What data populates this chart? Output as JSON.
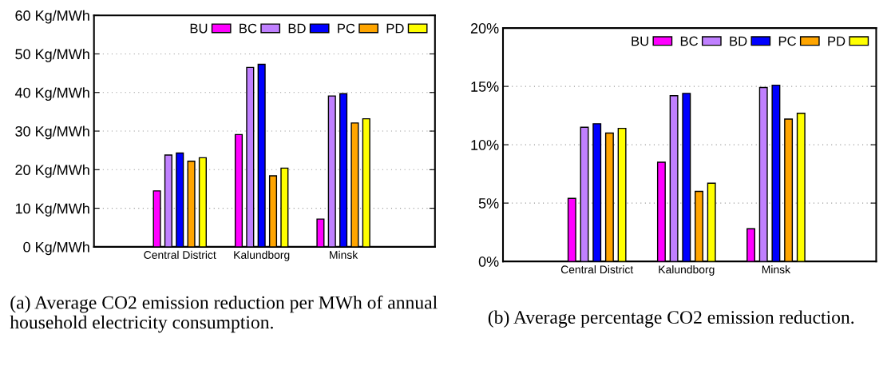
{
  "chart_data": [
    {
      "type": "bar",
      "title": "(a) Average CO2 emission reduction per MWh of annual household electricity consumption.",
      "categories": [
        "Central District",
        "Kalundborg",
        "Minsk"
      ],
      "series": [
        {
          "name": "BU",
          "color": "#ff00ff",
          "values": [
            14.5,
            29.1,
            7.2
          ]
        },
        {
          "name": "BC",
          "color": "#c080ff",
          "values": [
            23.8,
            46.5,
            39.1
          ]
        },
        {
          "name": "BD",
          "color": "#0000ff",
          "values": [
            24.3,
            47.3,
            39.7
          ]
        },
        {
          "name": "PC",
          "color": "#ffa500",
          "values": [
            22.2,
            18.4,
            32.1
          ]
        },
        {
          "name": "PD",
          "color": "#ffff00",
          "values": [
            23.1,
            20.4,
            33.2
          ]
        }
      ],
      "ylim": [
        0,
        60
      ],
      "yticks": [
        {
          "value": 0,
          "label": "0 Kg/MWh"
        },
        {
          "value": 10,
          "label": "10 Kg/MWh"
        },
        {
          "value": 20,
          "label": "20 Kg/MWh"
        },
        {
          "value": 30,
          "label": "30 Kg/MWh"
        },
        {
          "value": 40,
          "label": "40 Kg/MWh"
        },
        {
          "value": 50,
          "label": "50 Kg/MWh"
        },
        {
          "value": 60,
          "label": "60 Kg/MWh"
        }
      ],
      "grid": "y",
      "legend": "top right"
    },
    {
      "type": "bar",
      "title": "(b) Average percentage CO2 emission reduction.",
      "categories": [
        "Central District",
        "Kalundborg",
        "Minsk"
      ],
      "series": [
        {
          "name": "BU",
          "color": "#ff00ff",
          "values": [
            5.4,
            8.5,
            2.8
          ]
        },
        {
          "name": "BC",
          "color": "#c080ff",
          "values": [
            11.5,
            14.2,
            14.9
          ]
        },
        {
          "name": "BD",
          "color": "#0000ff",
          "values": [
            11.8,
            14.4,
            15.1
          ]
        },
        {
          "name": "PC",
          "color": "#ffa500",
          "values": [
            11.0,
            6.0,
            12.2
          ]
        },
        {
          "name": "PD",
          "color": "#ffff00",
          "values": [
            11.4,
            6.7,
            12.7
          ]
        }
      ],
      "ylim": [
        0,
        20
      ],
      "yticks": [
        {
          "value": 0,
          "label": "0%"
        },
        {
          "value": 5,
          "label": "5%"
        },
        {
          "value": 10,
          "label": "10%"
        },
        {
          "value": 15,
          "label": "15%"
        },
        {
          "value": 20,
          "label": "20%"
        }
      ],
      "grid": "y",
      "legend": "top right"
    }
  ]
}
